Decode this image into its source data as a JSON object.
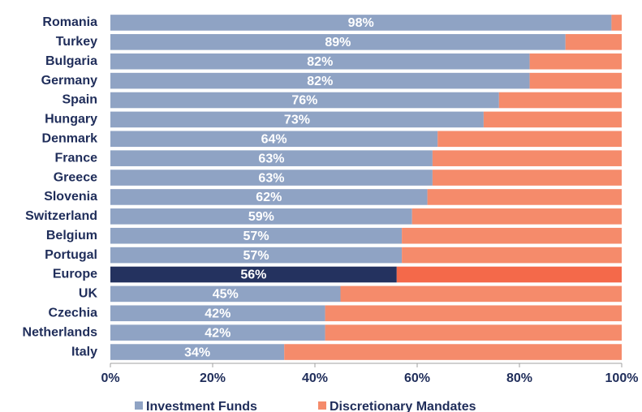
{
  "chart_data": {
    "type": "stacked_barh",
    "categories": [
      "Romania",
      "Turkey",
      "Bulgaria",
      "Germany",
      "Spain",
      "Hungary",
      "Denmark",
      "France",
      "Greece",
      "Slovenia",
      "Switzerland",
      "Belgium",
      "Portugal",
      "Europe",
      "UK",
      "Czechia",
      "Netherlands",
      "Italy"
    ],
    "series": [
      {
        "name": "Investment Funds",
        "color": "#8fa3c4",
        "colors": [
          "#8fa3c4",
          "#8fa3c4",
          "#8fa3c4",
          "#8fa3c4",
          "#8fa3c4",
          "#8fa3c4",
          "#8fa3c4",
          "#8fa3c4",
          "#8fa3c4",
          "#8fa3c4",
          "#8fa3c4",
          "#8fa3c4",
          "#8fa3c4",
          "#24325f",
          "#8fa3c4",
          "#8fa3c4",
          "#8fa3c4",
          "#8fa3c4"
        ],
        "values": [
          98,
          89,
          82,
          82,
          76,
          73,
          64,
          63,
          63,
          62,
          59,
          57,
          57,
          56,
          45,
          42,
          42,
          34
        ],
        "value_labels": [
          "98%",
          "89%",
          "82%",
          "82%",
          "76%",
          "73%",
          "64%",
          "63%",
          "63%",
          "62%",
          "59%",
          "57%",
          "57%",
          "56%",
          "45%",
          "42%",
          "42%",
          "34%"
        ]
      },
      {
        "name": "Discretionary Mandates",
        "color": "#f58b6b",
        "colors": [
          "#f58b6b",
          "#f58b6b",
          "#f58b6b",
          "#f58b6b",
          "#f58b6b",
          "#f58b6b",
          "#f58b6b",
          "#f58b6b",
          "#f58b6b",
          "#f58b6b",
          "#f58b6b",
          "#f58b6b",
          "#f58b6b",
          "#f4694a",
          "#f58b6b",
          "#f58b6b",
          "#f58b6b",
          "#f58b6b"
        ],
        "values": [
          2,
          11,
          18,
          18,
          24,
          27,
          36,
          37,
          37,
          38,
          41,
          43,
          43,
          44,
          55,
          58,
          58,
          66
        ]
      }
    ],
    "xlim": [
      0,
      100
    ],
    "xticks": [
      {
        "value": 0,
        "label": "0%"
      },
      {
        "value": 20,
        "label": "20%"
      },
      {
        "value": 40,
        "label": "40%"
      },
      {
        "value": 60,
        "label": "60%"
      },
      {
        "value": 80,
        "label": "80%"
      },
      {
        "value": 100,
        "label": "100%"
      }
    ],
    "legend": "bottom"
  }
}
